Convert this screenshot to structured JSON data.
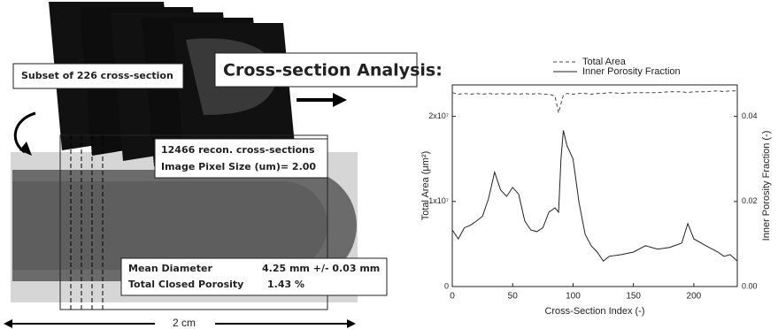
{
  "diagram": {
    "subset_label": "Subset of 226 cross-section",
    "analysis_title": "Cross-section Analysis:",
    "recon_line1": "12466 recon. cross-sections",
    "recon_line2": "Image Pixel Size (um)= 2.00",
    "diameter_label": "Mean Diameter",
    "diameter_value": "4.25 mm +/- 0.03 mm",
    "porosity_label": "Total Closed Porosity",
    "porosity_value": "1.43 %",
    "scale_label": "2 cm"
  },
  "chart_data": {
    "type": "line",
    "xlabel": "Cross-Section Index (-)",
    "ylabel": "Total Area (μm²)",
    "y2label": "Inner Porosity Fraction (-)",
    "x": [
      0,
      5,
      10,
      15,
      20,
      25,
      30,
      35,
      40,
      45,
      50,
      55,
      60,
      65,
      70,
      75,
      80,
      85,
      88,
      90,
      92,
      95,
      100,
      105,
      110,
      115,
      120,
      125,
      130,
      140,
      150,
      160,
      170,
      180,
      190,
      195,
      200,
      210,
      220,
      225,
      230,
      236
    ],
    "series": [
      {
        "name": "Total Area",
        "color": "#444444",
        "style": "dashed",
        "values": [
          22800000,
          22600000,
          22700000,
          22600000,
          22700000,
          22600000,
          22700000,
          22600000,
          22700000,
          22600000,
          22700000,
          22600000,
          22700000,
          22600000,
          22700000,
          22600000,
          22600000,
          22400000,
          20400000,
          21500000,
          22500000,
          22700000,
          22600000,
          22700000,
          22700000,
          22600000,
          22700000,
          22700000,
          22800000,
          22700000,
          22800000,
          22800000,
          22800000,
          22900000,
          22900000,
          22800000,
          22900000,
          22900000,
          23000000,
          22900000,
          23000000,
          23000000
        ]
      },
      {
        "name": "Inner Porosity Fraction",
        "color": "#222222",
        "style": "solid",
        "axis": "y2",
        "values": [
          0.0133,
          0.0112,
          0.0138,
          0.0144,
          0.0154,
          0.0165,
          0.0206,
          0.0269,
          0.0227,
          0.0212,
          0.0233,
          0.0217,
          0.0154,
          0.0133,
          0.0129,
          0.0138,
          0.0175,
          0.0185,
          0.0175,
          0.03,
          0.0367,
          0.0331,
          0.03,
          0.0196,
          0.0123,
          0.0096,
          0.0081,
          0.006,
          0.0071,
          0.0075,
          0.0081,
          0.0096,
          0.0088,
          0.0092,
          0.0102,
          0.0148,
          0.0112,
          0.0096,
          0.0081,
          0.0071,
          0.0075,
          0.006
        ]
      }
    ],
    "xlim": [
      0,
      236
    ],
    "xticks": [
      0,
      50,
      100,
      150,
      200
    ],
    "ylim": [
      0,
      23700000
    ],
    "yticks": [
      0,
      {
        "value": 10000000,
        "label": "1x10⁷"
      },
      {
        "value": 20000000,
        "label": "2x10⁷"
      }
    ],
    "y2lim": [
      0,
      0.0474
    ],
    "y2ticks": [
      {
        "value": 0,
        "label": "0.00"
      },
      {
        "value": 0.02,
        "label": "0.02"
      },
      {
        "value": 0.04,
        "label": "0.04"
      }
    ],
    "legend": "top"
  }
}
